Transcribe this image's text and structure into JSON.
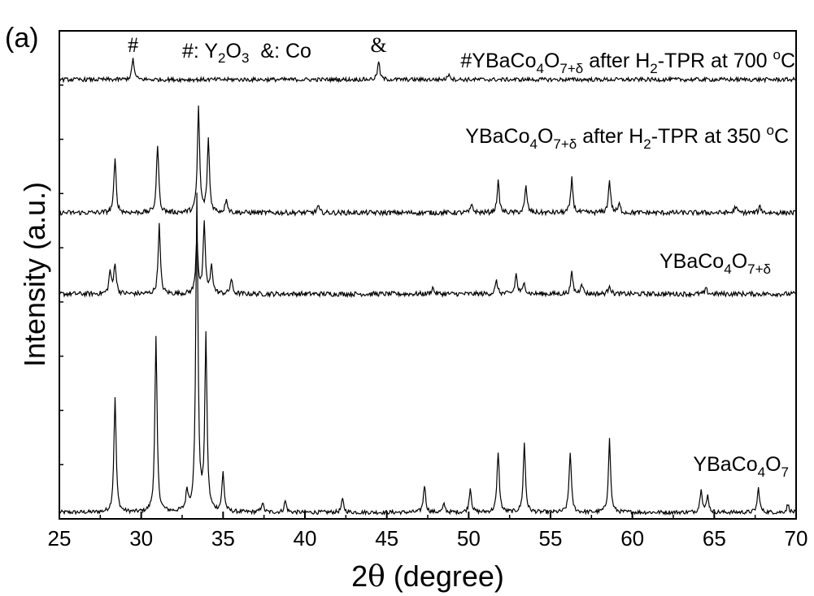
{
  "chart_data": {
    "type": "line",
    "panel_label": "(a)",
    "xlabel_prefix": "2",
    "xlabel_symbol": "θ",
    "xlabel_suffix": " (degree)",
    "ylabel": "Intensity (a.u.)",
    "xlim": [
      25,
      70
    ],
    "x_ticks": [
      25,
      30,
      35,
      40,
      45,
      50,
      55,
      60,
      65,
      70
    ],
    "legend": {
      "hash": "#",
      "hash_phase_main": ": Y",
      "hash_sub1": "2",
      "hash_mid": "O",
      "hash_sub2": "3",
      "amp": "&",
      "amp_phase": ": Co"
    },
    "series": [
      {
        "name": "YBaCo4O7",
        "label_parts": [
          "YBaCo",
          "4",
          "O",
          "7"
        ],
        "noise": 2.5,
        "peaks": [
          [
            28.4,
            140
          ],
          [
            30.9,
            215
          ],
          [
            33.4,
            390
          ],
          [
            33.95,
            212
          ],
          [
            35.0,
            48
          ],
          [
            32.8,
            24
          ],
          [
            37.4,
            12
          ],
          [
            38.8,
            14
          ],
          [
            42.3,
            16
          ],
          [
            47.3,
            34
          ],
          [
            48.5,
            10
          ],
          [
            50.1,
            30
          ],
          [
            51.8,
            75
          ],
          [
            53.4,
            85
          ],
          [
            56.2,
            75
          ],
          [
            58.6,
            90
          ],
          [
            64.2,
            30
          ],
          [
            64.6,
            20
          ],
          [
            67.7,
            30
          ],
          [
            69.5,
            10
          ]
        ]
      },
      {
        "name": "YBaCo4O7+δ",
        "label_parts": [
          "YBaCo",
          "4",
          "O",
          "7+δ"
        ],
        "noise": 3,
        "peaks": [
          [
            28.1,
            28
          ],
          [
            28.4,
            38
          ],
          [
            31.1,
            85
          ],
          [
            33.4,
            70
          ],
          [
            33.85,
            85
          ],
          [
            34.3,
            35
          ],
          [
            35.5,
            18
          ],
          [
            47.8,
            8
          ],
          [
            51.7,
            16
          ],
          [
            52.9,
            24
          ],
          [
            53.4,
            14
          ],
          [
            56.3,
            26
          ],
          [
            56.9,
            14
          ],
          [
            58.6,
            12
          ],
          [
            64.5,
            6
          ]
        ]
      },
      {
        "name": "YBaCo4O7+δ after H2-TPR at 350 °C",
        "label_parts": [
          "YBaCo",
          "4",
          "O",
          "7+δ",
          " after H",
          "2",
          "-TPR at 350 ",
          "o",
          "C"
        ],
        "noise": 3,
        "peaks": [
          [
            28.4,
            65
          ],
          [
            31.0,
            85
          ],
          [
            33.5,
            130
          ],
          [
            34.1,
            90
          ],
          [
            35.2,
            18
          ],
          [
            40.8,
            8
          ],
          [
            50.2,
            10
          ],
          [
            51.8,
            38
          ],
          [
            53.5,
            32
          ],
          [
            56.3,
            42
          ],
          [
            58.6,
            40
          ],
          [
            59.2,
            10
          ],
          [
            66.3,
            8
          ],
          [
            67.8,
            8
          ]
        ]
      },
      {
        "name": "#YBaCo4O7+δ after H2-TPR at 700 °C",
        "label_parts": [
          "#YBaCo",
          "4",
          "O",
          "7+δ",
          " after H",
          "2",
          "-TPR at 700 ",
          "o",
          "C"
        ],
        "noise": 2.5,
        "peaks": [
          [
            29.5,
            26
          ],
          [
            44.5,
            22
          ],
          [
            48.8,
            8
          ]
        ]
      }
    ],
    "markers": [
      {
        "symbol": "#",
        "x": 29.5
      },
      {
        "symbol": "&",
        "x": 44.5
      }
    ]
  }
}
